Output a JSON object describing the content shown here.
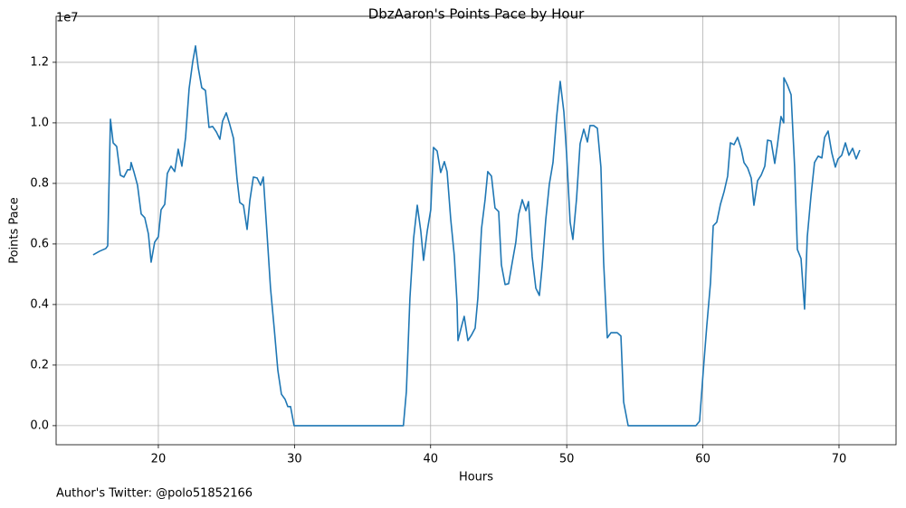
{
  "chart_data": {
    "type": "line",
    "title": "DbzAaron's Points Pace by Hour",
    "xlabel": "Hours",
    "ylabel": "Points Pace",
    "y_offset_label": "1e7",
    "footnote": "Author's Twitter: @polo51852166",
    "color": "#1f77b4",
    "grid": true,
    "xlim": [
      12.49,
      74.19
    ],
    "ylim": [
      -0.063,
      1.352
    ],
    "xticks": [
      20,
      30,
      40,
      50,
      60,
      70
    ],
    "yticks": [
      {
        "value": 0,
        "label": "0.0"
      },
      0.2,
      0.4,
      0.6,
      0.8,
      {
        "value": 1,
        "label": "1.0"
      },
      1.2
    ],
    "x": [
      15.21,
      15.68,
      16.14,
      16.28,
      16.48,
      16.68,
      16.94,
      17.21,
      17.47,
      17.74,
      17.94,
      18.0,
      18.2,
      18.47,
      18.74,
      19.0,
      19.27,
      19.47,
      19.73,
      20.0,
      20.2,
      20.47,
      20.66,
      20.93,
      21.2,
      21.46,
      21.73,
      22.0,
      22.26,
      22.53,
      22.73,
      22.93,
      23.19,
      23.46,
      23.72,
      23.99,
      24.26,
      24.52,
      24.72,
      24.99,
      25.25,
      25.52,
      25.78,
      25.98,
      26.25,
      26.52,
      26.72,
      26.98,
      27.25,
      27.51,
      27.71,
      27.98,
      28.24,
      28.51,
      28.78,
      29.04,
      29.31,
      29.51,
      29.71,
      29.97,
      38.0,
      38.22,
      38.48,
      38.75,
      39.02,
      39.28,
      39.48,
      39.75,
      40.01,
      40.21,
      40.48,
      40.74,
      41.01,
      41.21,
      41.48,
      41.74,
      41.94,
      42.01,
      42.27,
      42.47,
      42.74,
      43.0,
      43.27,
      43.47,
      43.74,
      44.0,
      44.2,
      44.47,
      44.73,
      45.0,
      45.2,
      45.47,
      45.73,
      46.0,
      46.26,
      46.46,
      46.73,
      47.0,
      47.19,
      47.46,
      47.73,
      47.99,
      48.19,
      48.46,
      48.72,
      48.99,
      49.26,
      49.52,
      49.79,
      49.99,
      50.25,
      50.45,
      50.72,
      50.98,
      51.25,
      51.52,
      51.71,
      51.98,
      52.25,
      52.51,
      52.71,
      52.98,
      53.25,
      53.51,
      53.71,
      53.98,
      54.18,
      54.51,
      59.49,
      59.76,
      60.03,
      60.29,
      60.56,
      60.76,
      61.02,
      61.29,
      61.56,
      61.82,
      62.02,
      62.29,
      62.55,
      62.82,
      63.02,
      63.29,
      63.55,
      63.75,
      64.02,
      64.28,
      64.55,
      64.75,
      65.01,
      65.28,
      65.48,
      65.74,
      65.94,
      65.95,
      66.21,
      66.48,
      66.74,
      66.94,
      67.21,
      67.47,
      67.67,
      67.94,
      68.2,
      68.47,
      68.74,
      68.94,
      69.2,
      69.47,
      69.73,
      69.93,
      70.2,
      70.47,
      70.73,
      71.0,
      71.26,
      71.53
    ],
    "values": [
      0.564,
      0.576,
      0.585,
      0.594,
      1.012,
      0.934,
      0.922,
      0.827,
      0.821,
      0.845,
      0.845,
      0.869,
      0.839,
      0.794,
      0.699,
      0.687,
      0.633,
      0.54,
      0.606,
      0.624,
      0.713,
      0.731,
      0.833,
      0.857,
      0.839,
      0.913,
      0.857,
      0.952,
      1.113,
      1.203,
      1.254,
      1.182,
      1.116,
      1.107,
      0.985,
      0.988,
      0.97,
      0.946,
      1.006,
      1.033,
      0.994,
      0.949,
      0.815,
      0.737,
      0.728,
      0.648,
      0.743,
      0.821,
      0.818,
      0.794,
      0.821,
      0.636,
      0.454,
      0.322,
      0.182,
      0.104,
      0.087,
      0.063,
      0.063,
      0,
      0,
      0.113,
      0.421,
      0.618,
      0.728,
      0.642,
      0.546,
      0.642,
      0.713,
      0.919,
      0.907,
      0.836,
      0.872,
      0.839,
      0.681,
      0.561,
      0.406,
      0.281,
      0.328,
      0.361,
      0.281,
      0.299,
      0.322,
      0.421,
      0.651,
      0.746,
      0.839,
      0.824,
      0.719,
      0.707,
      0.531,
      0.466,
      0.469,
      0.54,
      0.606,
      0.696,
      0.746,
      0.71,
      0.74,
      0.558,
      0.454,
      0.43,
      0.525,
      0.681,
      0.797,
      0.869,
      1.021,
      1.137,
      1.036,
      0.896,
      0.672,
      0.615,
      0.749,
      0.931,
      0.979,
      0.937,
      0.991,
      0.991,
      0.982,
      0.854,
      0.54,
      0.29,
      0.307,
      0.307,
      0.307,
      0.296,
      0.078,
      0,
      0,
      0.015,
      0.182,
      0.331,
      0.472,
      0.66,
      0.672,
      0.731,
      0.773,
      0.824,
      0.934,
      0.928,
      0.952,
      0.913,
      0.869,
      0.851,
      0.818,
      0.728,
      0.809,
      0.827,
      0.857,
      0.943,
      0.94,
      0.866,
      0.928,
      1.021,
      1.0,
      1.149,
      1.125,
      1.093,
      0.854,
      0.582,
      0.552,
      0.385,
      0.624,
      0.758,
      0.869,
      0.89,
      0.884,
      0.952,
      0.973,
      0.901,
      0.854,
      0.881,
      0.893,
      0.934,
      0.893,
      0.916,
      0.881,
      0.91
    ]
  }
}
